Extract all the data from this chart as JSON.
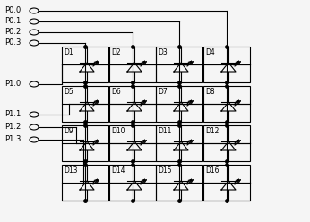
{
  "p0_labels": [
    "P0.0",
    "P0.1",
    "P0.2",
    "P0.3"
  ],
  "p1_labels": [
    "P1.0",
    "P1.1",
    "P1.2",
    "P1.3"
  ],
  "led_labels": [
    [
      "D1",
      "D2",
      "D3",
      "D4"
    ],
    [
      "D5",
      "D6",
      "D7",
      "D8"
    ],
    [
      "D9",
      "D10",
      "D11",
      "D12"
    ],
    [
      "D13",
      "D14",
      "D15",
      "D16"
    ]
  ],
  "grid_color": "#000000",
  "bg_color": "#f5f5f5",
  "line_width": 0.8
}
